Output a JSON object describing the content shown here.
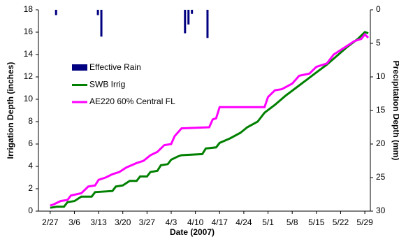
{
  "chart_data": {
    "type": "line",
    "xlabel": "Date (2007)",
    "ylabel": "Irrigation Depth (inches)",
    "y2label": "Precipitation Depth (mm)",
    "xlim": [
      -3.4,
      92.6
    ],
    "xticks": [
      {
        "value": 0,
        "label": "2/27"
      },
      {
        "value": 7,
        "label": "3/6"
      },
      {
        "value": 14,
        "label": "3/13"
      },
      {
        "value": 21,
        "label": "3/20"
      },
      {
        "value": 28,
        "label": "3/27"
      },
      {
        "value": 35,
        "label": "4/3"
      },
      {
        "value": 42,
        "label": "4/10"
      },
      {
        "value": 49,
        "label": "4/17"
      },
      {
        "value": 56,
        "label": "4/24"
      },
      {
        "value": 63,
        "label": "5/1"
      },
      {
        "value": 70,
        "label": "5/8"
      },
      {
        "value": 77,
        "label": "5/15"
      },
      {
        "value": 84,
        "label": "5/22"
      },
      {
        "value": 91,
        "label": "5/29"
      }
    ],
    "ylim": [
      0,
      18
    ],
    "yticks": [
      0,
      2,
      4,
      6,
      8,
      10,
      12,
      14,
      16,
      18
    ],
    "y2lim": [
      30,
      0
    ],
    "y2ticks": [
      0,
      5,
      10,
      15,
      20,
      25,
      30
    ],
    "series": [
      {
        "name": "Effective Rain",
        "type": "bar",
        "axis": "y2",
        "color": "#000080",
        "x": [
          1.7,
          13.8,
          14.8,
          39,
          40,
          41,
          45.5
        ],
        "values": [
          0.8,
          0.8,
          4,
          3.5,
          2.2,
          0.6,
          4.2
        ]
      },
      {
        "name": "SWB Irrig",
        "type": "line",
        "color": "#008000",
        "x": [
          0,
          2,
          4,
          5,
          7,
          9,
          12,
          13,
          18,
          19,
          21,
          23,
          25,
          26,
          28,
          29,
          31,
          32,
          34,
          35,
          37,
          38,
          44,
          45,
          48,
          49,
          52,
          55,
          57,
          60,
          62,
          65,
          68,
          71,
          74,
          77,
          80,
          83,
          86,
          89,
          91,
          92
        ],
        "values": [
          0.3,
          0.4,
          0.4,
          0.8,
          0.9,
          1.3,
          1.3,
          1.7,
          1.8,
          2.2,
          2.3,
          2.7,
          2.7,
          3.1,
          3.1,
          3.5,
          3.6,
          4.1,
          4.2,
          4.6,
          4.9,
          5.0,
          5.1,
          5.6,
          5.7,
          6.1,
          6.5,
          7.0,
          7.5,
          8.0,
          8.8,
          9.5,
          10.3,
          11.0,
          11.7,
          12.4,
          13.1,
          13.9,
          14.7,
          15.4,
          16.0,
          15.9
        ]
      },
      {
        "name": "AE220 60% Central FL",
        "type": "line",
        "color": "#ff00ff",
        "x": [
          0,
          1,
          3,
          5,
          6,
          9,
          11,
          13,
          14,
          16,
          18,
          20,
          22,
          25,
          27,
          29,
          31,
          33,
          35,
          36,
          38,
          46,
          47,
          48,
          49,
          62,
          63,
          65,
          67,
          70,
          72,
          75,
          77,
          80,
          82,
          84,
          86,
          88,
          90,
          91,
          92
        ],
        "values": [
          0.5,
          0.6,
          0.9,
          1.0,
          1.4,
          1.6,
          2.2,
          2.3,
          2.8,
          3.0,
          3.3,
          3.5,
          3.9,
          4.3,
          4.5,
          5.0,
          5.3,
          5.9,
          6.0,
          6.7,
          7.4,
          7.5,
          8.2,
          8.3,
          9.3,
          9.3,
          10.2,
          10.8,
          10.9,
          11.4,
          12.1,
          12.3,
          12.9,
          13.2,
          14.0,
          14.4,
          14.8,
          15.2,
          15.4,
          15.8,
          15.5
        ]
      }
    ]
  }
}
